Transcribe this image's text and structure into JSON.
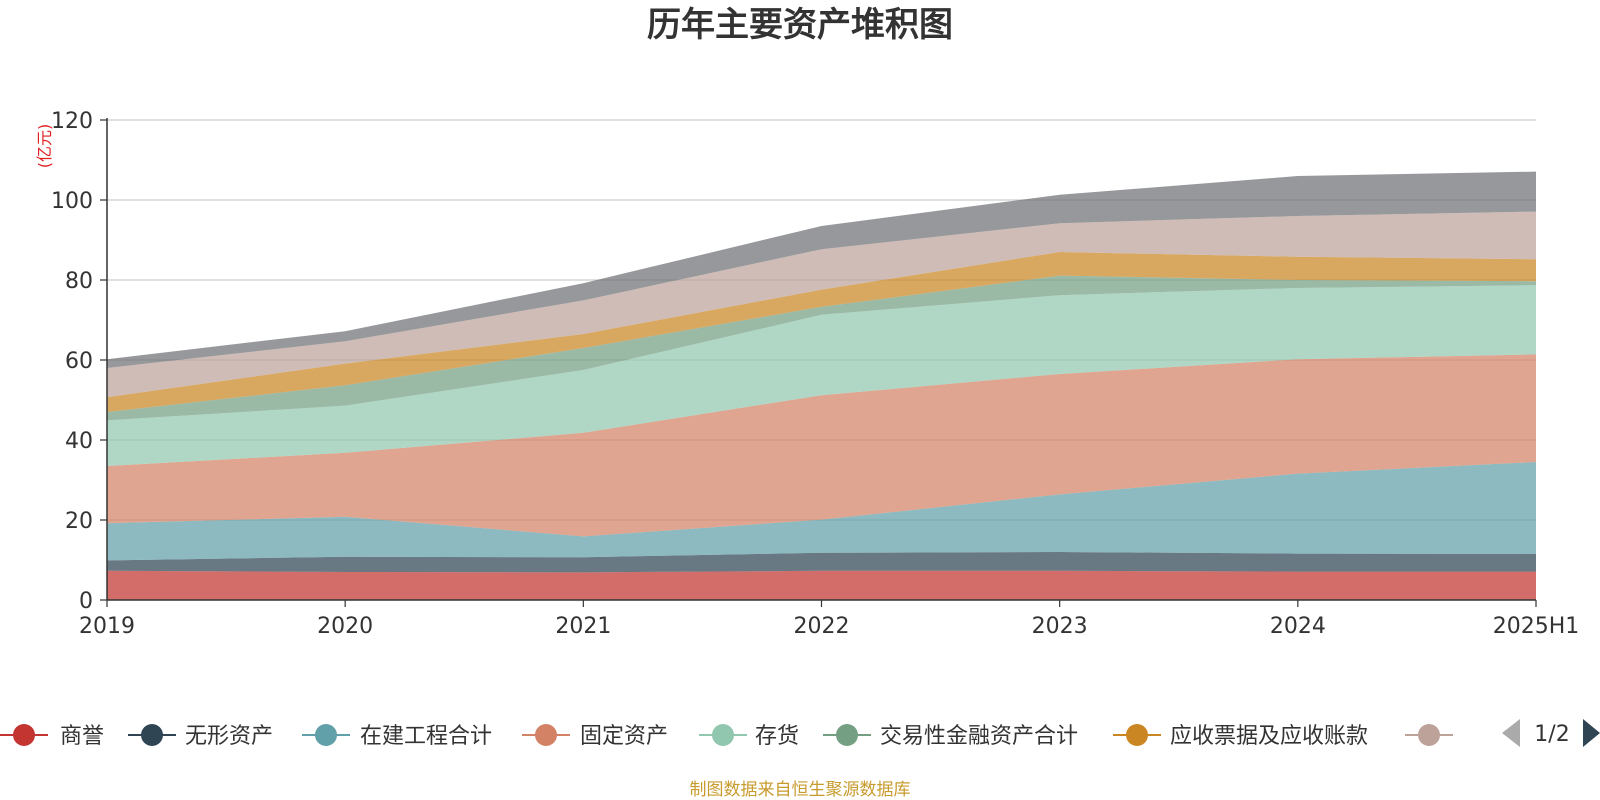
{
  "chart_data": {
    "type": "area",
    "stacked": true,
    "title": "历年主要资产堆积图",
    "unit_label": "(亿元)",
    "categories": [
      "2019",
      "2020",
      "2021",
      "2022",
      "2023",
      "2024",
      "2025H1"
    ],
    "ylim": [
      0,
      120
    ],
    "yticks": [
      0,
      20,
      40,
      60,
      80,
      100,
      120
    ],
    "grid": true,
    "series": [
      {
        "name": "商誉",
        "color": "#c23531",
        "values": [
          7.3,
          7.0,
          6.9,
          7.3,
          7.3,
          7.1,
          7.1
        ]
      },
      {
        "name": "无形资产",
        "color": "#2f4554",
        "values": [
          2.6,
          3.8,
          3.8,
          4.5,
          4.7,
          4.5,
          4.4
        ]
      },
      {
        "name": "在建工程合计",
        "color": "#61a0a8",
        "values": [
          9.3,
          10.0,
          5.2,
          8.3,
          14.4,
          20.0,
          23.0
        ]
      },
      {
        "name": "固定资产",
        "color": "#d48265",
        "values": [
          14.3,
          16.0,
          25.9,
          31.1,
          30.1,
          28.6,
          26.9
        ]
      },
      {
        "name": "存货",
        "color": "#91c7ae",
        "values": [
          11.4,
          11.8,
          15.7,
          20.1,
          19.7,
          17.8,
          17.3
        ]
      },
      {
        "name": "交易性金融资产合计",
        "color": "#749f83",
        "values": [
          2.1,
          5.1,
          5.5,
          2.0,
          4.9,
          2.0,
          1.0
        ]
      },
      {
        "name": "应收票据及应收账款",
        "color": "#ca8622",
        "values": [
          3.7,
          5.4,
          3.5,
          4.3,
          5.9,
          5.8,
          5.5
        ]
      },
      {
        "name": "",
        "color": "#bda29a",
        "values": [
          7.3,
          5.6,
          8.4,
          10.1,
          7.2,
          10.2,
          11.9
        ]
      },
      {
        "name": "",
        "color": "#6e7074",
        "values": [
          2.2,
          2.5,
          4.3,
          5.8,
          7.1,
          10.0,
          10.0
        ]
      }
    ]
  },
  "legend": {
    "page_indicator": "1/2",
    "items": [
      {
        "label": "商誉",
        "color": "#c23531"
      },
      {
        "label": "无形资产",
        "color": "#2f4554"
      },
      {
        "label": "在建工程合计",
        "color": "#61a0a8"
      },
      {
        "label": "固定资产",
        "color": "#d48265"
      },
      {
        "label": "存货",
        "color": "#91c7ae"
      },
      {
        "label": "交易性金融资产合计",
        "color": "#749f83"
      },
      {
        "label": "应收票据及应收账款",
        "color": "#ca8622"
      },
      {
        "label": "",
        "color": "#bda29a"
      }
    ],
    "prev_icon": "triangle-left-icon",
    "next_icon": "triangle-right-icon"
  },
  "source_text": "制图数据来自恒生聚源数据库"
}
